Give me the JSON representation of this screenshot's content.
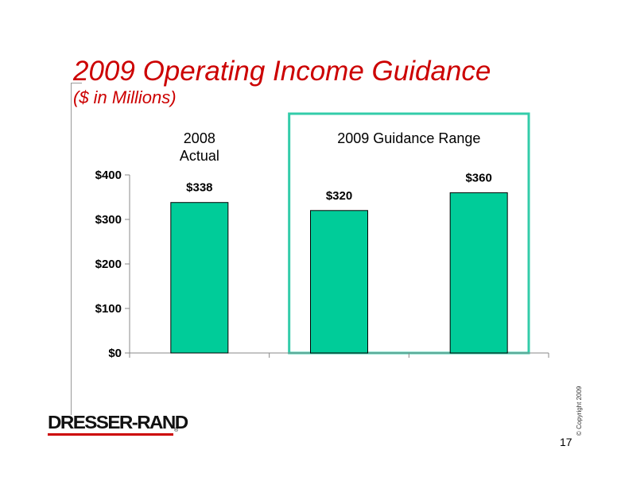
{
  "title": "2009 Operating Income Guidance",
  "subtitle": "($ in Millions)",
  "footer": {
    "logo_text": "DRESSER-RAND",
    "logo_mark": "®",
    "copyright": "© Copyright 2009",
    "page_number": "17"
  },
  "colors": {
    "title": "#cc0000",
    "bar": "#00cc99",
    "bar_outline": "#000000",
    "guidance_box": "#33ccaa"
  },
  "chart_data": {
    "type": "bar",
    "title": "",
    "xlabel": "",
    "ylabel": "",
    "ylim": [
      0,
      400
    ],
    "yticks": [
      0,
      100,
      200,
      300,
      400
    ],
    "ytick_labels": [
      "$0",
      "$100",
      "$200",
      "$300",
      "$400"
    ],
    "values": [
      338,
      320,
      360
    ],
    "data_labels": [
      "$338",
      "$320",
      "$360"
    ],
    "group_labels": [
      {
        "text": "2008 Actual",
        "lines": [
          "2008",
          "Actual"
        ]
      },
      {
        "text": "2009 Guidance Range",
        "lines": [
          "2009 Guidance Range"
        ]
      }
    ],
    "grid": false,
    "highlight_box": "2009 Guidance Range"
  }
}
